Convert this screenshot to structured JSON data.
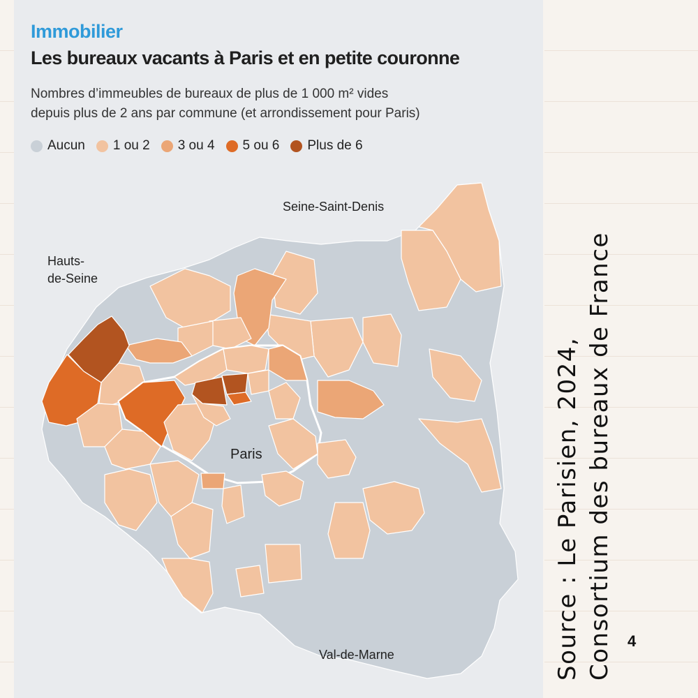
{
  "header": {
    "kicker": "Immobilier",
    "title": "Les bureaux vacants à Paris et en petite couronne",
    "subtitle_line1": "Nombres d’immeubles de bureaux de plus de 1 000 m² vides",
    "subtitle_line2": "depuis plus de 2 ans par commune (et arrondissement pour Paris)"
  },
  "legend": [
    {
      "label": "Aucun",
      "color": "#c9d0d7"
    },
    {
      "label": "1 ou 2",
      "color": "#f2c3a0"
    },
    {
      "label": "3 ou 4",
      "color": "#eba676"
    },
    {
      "label": "5 ou 6",
      "color": "#de6b26"
    },
    {
      "label": "Plus de 6",
      "color": "#b25420"
    }
  ],
  "map_labels": {
    "seine_saint_denis": "Seine-Saint-Denis",
    "hauts_de_seine_1": "Hauts-",
    "hauts_de_seine_2": "de-Seine",
    "paris": "Paris",
    "val_de_marne": "Val-de-Marne"
  },
  "source": {
    "line1": "Source : Le Parisien, 2024,",
    "line2": "Consortium des bureaux de France"
  },
  "page_number": "4"
}
